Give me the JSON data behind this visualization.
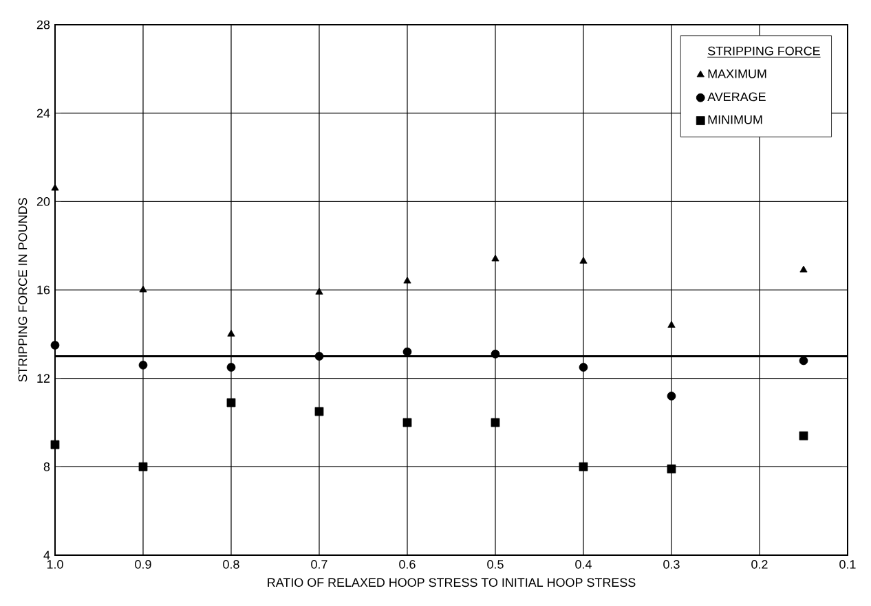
{
  "chart_data": {
    "type": "scatter",
    "xlabel": "RATIO OF RELAXED HOOP STRESS TO INITIAL HOOP STRESS",
    "ylabel": "STRIPPING FORCE IN POUNDS",
    "legend_title": "STRIPPING FORCE",
    "x": [
      1.0,
      0.9,
      0.8,
      0.7,
      0.6,
      0.5,
      0.4,
      0.3,
      0.15
    ],
    "series": [
      {
        "name": "MAXIMUM",
        "color": "#000000",
        "marker": "triangle",
        "values": [
          20.6,
          16.0,
          14.0,
          15.9,
          16.4,
          17.4,
          17.3,
          14.4,
          16.9
        ]
      },
      {
        "name": "AVERAGE",
        "color": "#000000",
        "marker": "circle",
        "values": [
          13.5,
          12.6,
          12.5,
          13.0,
          13.2,
          13.1,
          12.5,
          11.2,
          12.8
        ]
      },
      {
        "name": "MINIMUM",
        "color": "#000000",
        "marker": "square",
        "values": [
          9.0,
          8.0,
          10.9,
          10.5,
          10.0,
          10.0,
          8.0,
          7.9,
          9.4
        ]
      }
    ],
    "xlim": [
      1.0,
      0.1
    ],
    "ylim": [
      4,
      28
    ],
    "xticks": [
      {
        "value": 1.0,
        "label": "1.0"
      },
      {
        "value": 0.9,
        "label": "0.9"
      },
      {
        "value": 0.8,
        "label": "0.8"
      },
      {
        "value": 0.7,
        "label": "0.7"
      },
      {
        "value": 0.6,
        "label": "0.6"
      },
      {
        "value": 0.5,
        "label": "0.5"
      },
      {
        "value": 0.4,
        "label": "0.4"
      },
      {
        "value": 0.3,
        "label": "0.3"
      },
      {
        "value": 0.2,
        "label": "0.2"
      },
      {
        "value": 0.1,
        "label": "0.1"
      }
    ],
    "yticks": [
      4,
      8,
      12,
      16,
      20,
      24,
      28
    ],
    "ref_lines": [
      {
        "axis": "y",
        "value": 13,
        "color": "#000000"
      }
    ],
    "grid": true,
    "legend": "top right"
  }
}
